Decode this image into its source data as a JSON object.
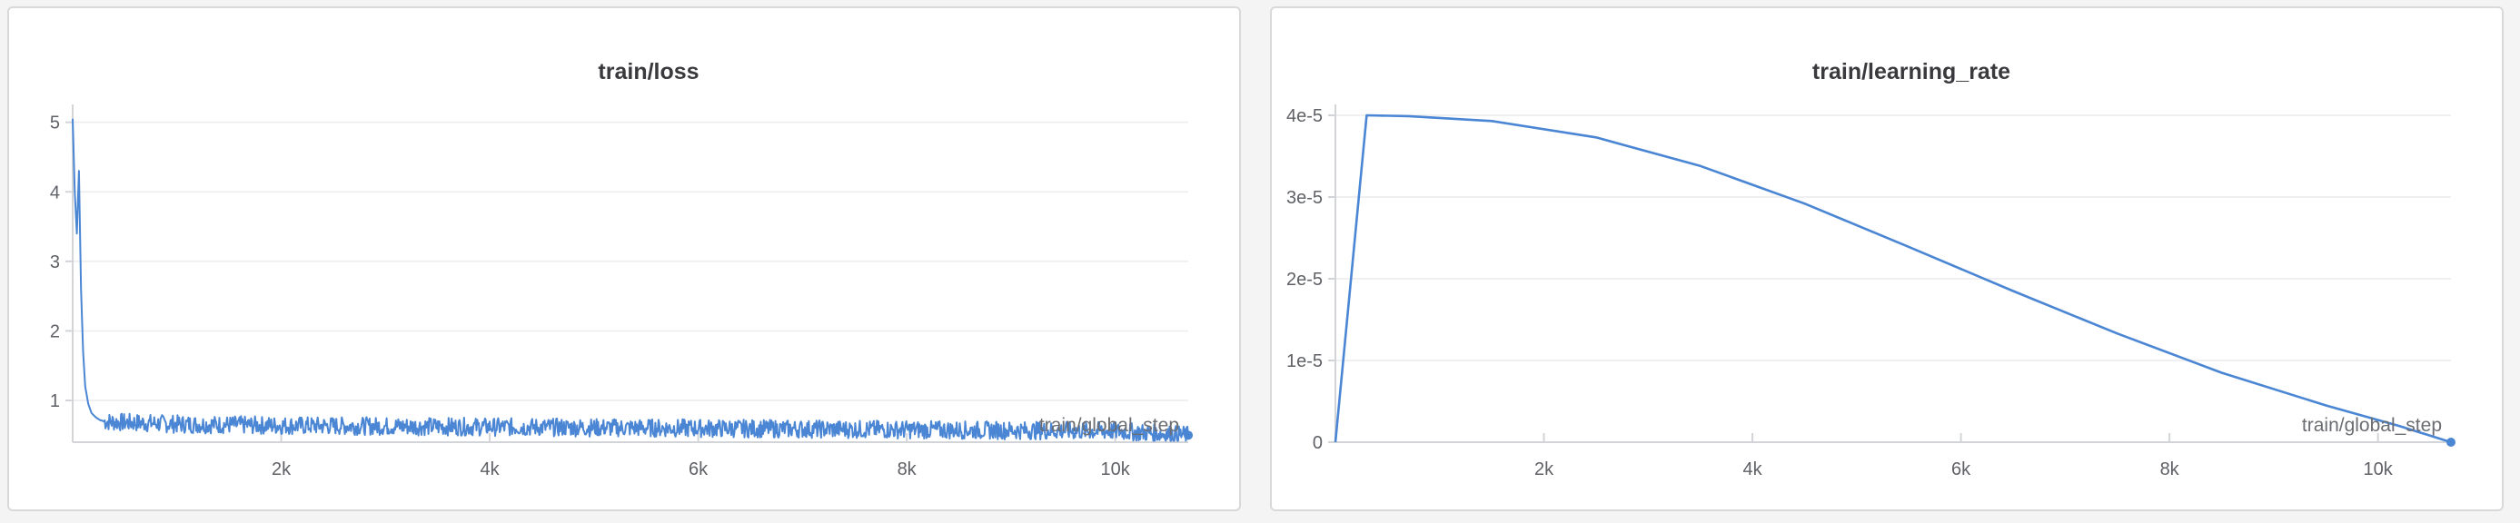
{
  "chart_data": [
    {
      "type": "line",
      "title": "train/loss",
      "xlabel": "train/global_step",
      "ylabel": "",
      "xlim": [
        0,
        10700
      ],
      "ylim": [
        0.4,
        5.1
      ],
      "yticks": [
        "1",
        "2",
        "3",
        "4",
        "5"
      ],
      "xticks": [
        "2k",
        "4k",
        "6k",
        "8k",
        "10k"
      ],
      "grid": true,
      "color": "#4a86d4",
      "series": [
        {
          "x": [
            0,
            20,
            40,
            60,
            80,
            100,
            120,
            150,
            180,
            220,
            260,
            300,
            400,
            600,
            800,
            1000,
            1500,
            2000,
            3000,
            4000,
            5000,
            6000,
            7000,
            8000,
            9000,
            10000,
            10700
          ],
          "values": [
            5.05,
            4.0,
            3.4,
            4.3,
            2.6,
            1.7,
            1.2,
            0.95,
            0.82,
            0.76,
            0.72,
            0.7,
            0.69,
            0.68,
            0.67,
            0.66,
            0.65,
            0.64,
            0.63,
            0.62,
            0.61,
            0.6,
            0.59,
            0.58,
            0.57,
            0.56,
            0.5
          ]
        }
      ]
    },
    {
      "type": "line",
      "title": "train/learning_rate",
      "xlabel": "train/global_step",
      "ylabel": "",
      "xlim": [
        0,
        10700
      ],
      "ylim": [
        0,
        4e-05
      ],
      "yticks": [
        "0",
        "1e-5",
        "2e-5",
        "3e-5",
        "4e-5"
      ],
      "xticks": [
        "2k",
        "4k",
        "6k",
        "8k",
        "10k"
      ],
      "grid": true,
      "color": "#4a86d4",
      "series": [
        {
          "x": [
            0,
            300,
            700,
            1500,
            2500,
            3500,
            4500,
            5500,
            6500,
            7500,
            8500,
            9500,
            10200,
            10700
          ],
          "values": [
            0,
            4e-05,
            3.99e-05,
            3.93e-05,
            3.73e-05,
            3.38e-05,
            2.92e-05,
            2.39e-05,
            1.85e-05,
            1.33e-05,
            8.5e-06,
            4.5e-06,
            2e-06,
            0
          ]
        }
      ]
    }
  ]
}
